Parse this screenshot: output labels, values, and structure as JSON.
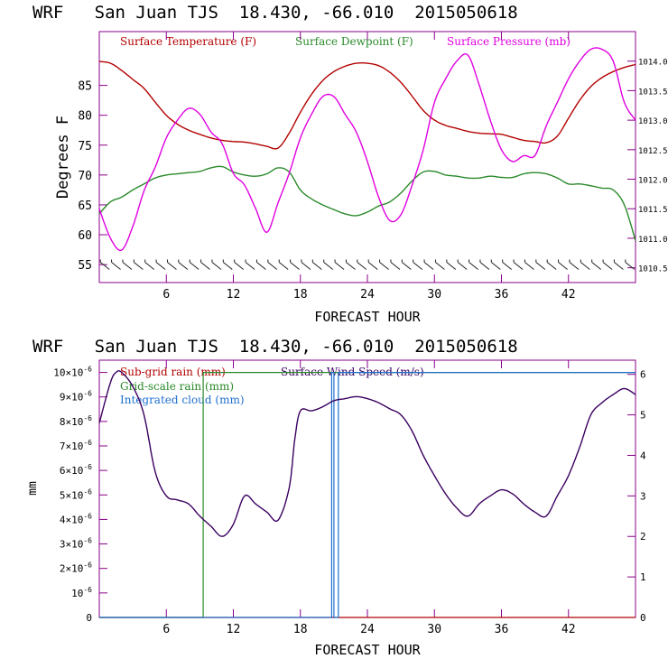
{
  "chart_data": [
    {
      "type": "line",
      "title": "WRF   San Juan TJS  18.430, -66.010  2015050618",
      "xlabel": "FORECAST HOUR",
      "ylabel": "Degrees F",
      "xlim": [
        0,
        48
      ],
      "ylim": [
        52,
        94
      ],
      "y2lim": [
        1010.25,
        1014.5
      ],
      "xticks": [
        "6",
        "12",
        "18",
        "24",
        "30",
        "36",
        "42"
      ],
      "yticks": [
        "55",
        "60",
        "65",
        "70",
        "75",
        "80",
        "85"
      ],
      "y2ticks": [
        "1010.5",
        "1011.0",
        "1011.5",
        "1012.0",
        "1012.5",
        "1013.0",
        "1013.5",
        "1014.0"
      ],
      "grid": false,
      "legend": "top-left",
      "colors": {
        "temperature": "#b30000",
        "dewpoint": "#2a8a2a",
        "pressure": "#e000e0"
      },
      "series": [
        {
          "name": "Surface Temperature (F)",
          "axis": "left",
          "x": [
            0,
            1,
            2,
            3,
            4,
            5,
            6,
            7,
            8,
            9,
            10,
            11,
            12,
            13,
            14,
            15,
            16,
            17,
            18,
            19,
            20,
            21,
            22,
            23,
            24,
            25,
            26,
            27,
            28,
            29,
            30,
            31,
            32,
            33,
            34,
            35,
            36,
            37,
            38,
            39,
            40,
            41,
            42,
            43,
            44,
            45,
            46,
            47,
            48
          ],
          "values": [
            89,
            88.7,
            87.5,
            86,
            84.5,
            82.2,
            80,
            78.5,
            77.5,
            76.8,
            76.2,
            75.8,
            75.6,
            75.5,
            75.2,
            74.8,
            74.5,
            77,
            80.5,
            83.5,
            85.8,
            87.3,
            88.2,
            88.7,
            88.7,
            88.3,
            87.2,
            85.5,
            83.2,
            80.8,
            79.2,
            78.3,
            77.8,
            77.3,
            77,
            76.9,
            76.8,
            76.3,
            75.8,
            75.6,
            75.4,
            76.5,
            79.5,
            82.5,
            84.8,
            86.3,
            87.3,
            88,
            88.5
          ]
        },
        {
          "name": "Surface Dewpoint (F)",
          "axis": "left",
          "x": [
            0,
            1,
            2,
            3,
            4,
            5,
            6,
            7,
            8,
            9,
            10,
            11,
            12,
            13,
            14,
            15,
            16,
            17,
            18,
            19,
            20,
            21,
            22,
            23,
            24,
            25,
            26,
            27,
            28,
            29,
            30,
            31,
            32,
            33,
            34,
            35,
            36,
            37,
            38,
            39,
            40,
            41,
            42,
            43,
            44,
            45,
            46,
            47,
            48
          ],
          "values": [
            63.5,
            65.5,
            66.3,
            67.5,
            68.5,
            69.5,
            70,
            70.2,
            70.4,
            70.6,
            71.2,
            71.4,
            70.5,
            70,
            69.8,
            70.2,
            71.2,
            70.5,
            67.5,
            66,
            65,
            64.2,
            63.5,
            63.2,
            63.8,
            64.8,
            65.5,
            67,
            69,
            70.5,
            70.6,
            70,
            69.8,
            69.5,
            69.5,
            69.8,
            69.6,
            69.6,
            70.2,
            70.4,
            70.2,
            69.5,
            68.5,
            68.5,
            68.2,
            67.8,
            67.5,
            65,
            59
          ]
        },
        {
          "name": "Surface Pressure (mb)",
          "axis": "right",
          "x": [
            0,
            1,
            2,
            3,
            4,
            5,
            6,
            7,
            8,
            9,
            10,
            11,
            12,
            13,
            14,
            15,
            16,
            17,
            18,
            19,
            20,
            21,
            22,
            23,
            24,
            25,
            26,
            27,
            28,
            29,
            30,
            31,
            32,
            33,
            34,
            35,
            36,
            37,
            38,
            39,
            40,
            41,
            42,
            43,
            44,
            45,
            46,
            47,
            48
          ],
          "values": [
            1011.5,
            1011.0,
            1010.8,
            1011.2,
            1011.8,
            1012.2,
            1012.7,
            1013.0,
            1013.2,
            1013.1,
            1012.8,
            1012.6,
            1012.1,
            1011.9,
            1011.5,
            1011.1,
            1011.6,
            1012.1,
            1012.7,
            1013.1,
            1013.4,
            1013.4,
            1013.1,
            1012.8,
            1012.3,
            1011.7,
            1011.3,
            1011.4,
            1011.9,
            1012.5,
            1013.3,
            1013.7,
            1014.0,
            1014.1,
            1013.6,
            1013.0,
            1012.5,
            1012.3,
            1012.4,
            1012.4,
            1012.9,
            1013.3,
            1013.7,
            1014.0,
            1014.2,
            1014.2,
            1014.0,
            1013.3,
            1013.0
          ]
        }
      ],
      "wind_barbs_at": 54.8
    },
    {
      "type": "line",
      "title": "WRF   San Juan TJS  18.430, -66.010  2015050618",
      "xlabel": "FORECAST HOUR",
      "ylabel": "mm",
      "xlim": [
        0,
        48
      ],
      "ylim": [
        0,
        10.5
      ],
      "y2lim": [
        0,
        6.35
      ],
      "xticks": [
        "6",
        "12",
        "18",
        "24",
        "30",
        "36",
        "42"
      ],
      "yticks": [
        {
          "mant": "",
          "exp": "",
          "plain": "0"
        },
        {
          "mant": "",
          "exp": "-6",
          "plain": "10"
        },
        {
          "mant": "2×",
          "exp": "-6",
          "plain": "10"
        },
        {
          "mant": "3×",
          "exp": "-6",
          "plain": "10"
        },
        {
          "mant": "4×",
          "exp": "-6",
          "plain": "10"
        },
        {
          "mant": "5×",
          "exp": "-6",
          "plain": "10"
        },
        {
          "mant": "6×",
          "exp": "-6",
          "plain": "10"
        },
        {
          "mant": "7×",
          "exp": "-6",
          "plain": "10"
        },
        {
          "mant": "8×",
          "exp": "-6",
          "plain": "10"
        },
        {
          "mant": "9×",
          "exp": "-6",
          "plain": "10"
        },
        {
          "mant": "10×",
          "exp": "-6",
          "plain": "10"
        }
      ],
      "y2ticks": [
        "0",
        "1",
        "2",
        "3",
        "4",
        "5",
        "6"
      ],
      "grid": false,
      "legend": "top-left",
      "colors": {
        "subgrid": "#b30000",
        "gridscale": "#2a8a2a",
        "cloud": "#1f6fd0",
        "wind": "#3a0060"
      },
      "legend_entries": [
        "Sub-grid rain (mm)",
        "Grid-scale rain (mm)",
        "Integrated cloud (mm)",
        "Surface Wind Speed (m/s)"
      ],
      "series": [
        {
          "name": "Sub-grid rain (mm)",
          "axis": "left",
          "x": [
            0,
            48
          ],
          "values": [
            0,
            0
          ]
        },
        {
          "name": "Grid-scale rain (mm)",
          "axis": "left",
          "x": [
            0,
            9.3,
            9.3,
            48
          ],
          "values": [
            0,
            0,
            10,
            10
          ]
        },
        {
          "name": "Integrated cloud (mm)",
          "axis": "left",
          "x": [
            0,
            20.8,
            20.8,
            21.0,
            21.0,
            21.4,
            21.4,
            48
          ],
          "values": [
            0,
            0,
            10,
            10,
            0,
            0,
            10,
            10
          ]
        },
        {
          "name": "Surface Wind Speed (m/s)",
          "axis": "right",
          "x": [
            0,
            1,
            1.5,
            2,
            3,
            4,
            5,
            6,
            7,
            8,
            9,
            10,
            11,
            12,
            13,
            14,
            15,
            16,
            17,
            17.5,
            18,
            19,
            20,
            21,
            22,
            23,
            24,
            25,
            26,
            27,
            28,
            29,
            30,
            31,
            32,
            33,
            34,
            35,
            36,
            37,
            38,
            39,
            40,
            41,
            42,
            43,
            44,
            45,
            46,
            47,
            48
          ],
          "values": [
            4.8,
            5.8,
            6.05,
            6.05,
            5.7,
            5.0,
            3.6,
            3.0,
            2.9,
            2.8,
            2.5,
            2.25,
            2.0,
            2.3,
            3.0,
            2.8,
            2.6,
            2.4,
            3.2,
            4.4,
            5.1,
            5.1,
            5.2,
            5.35,
            5.4,
            5.45,
            5.4,
            5.3,
            5.15,
            5.0,
            4.6,
            4.0,
            3.5,
            3.05,
            2.7,
            2.5,
            2.8,
            3.0,
            3.15,
            3.05,
            2.8,
            2.6,
            2.5,
            3.0,
            3.5,
            4.2,
            5.0,
            5.3,
            5.5,
            5.65,
            5.5
          ]
        }
      ]
    }
  ]
}
